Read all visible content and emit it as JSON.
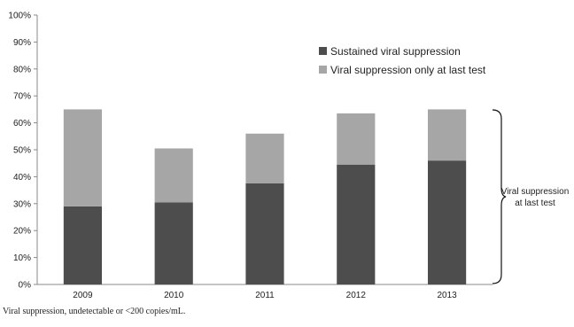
{
  "chart_data": {
    "type": "bar",
    "stacked": true,
    "categories": [
      "2009",
      "2010",
      "2011",
      "2012",
      "2013"
    ],
    "series": [
      {
        "name": "Sustained viral suppression",
        "values": [
          29,
          30.5,
          37.5,
          44.5,
          46
        ],
        "color": "#4d4d4d"
      },
      {
        "name": "Viral suppression only at last test",
        "values": [
          36,
          20,
          18.5,
          19,
          19
        ],
        "color": "#a6a6a6"
      }
    ],
    "ylim": [
      0,
      100
    ],
    "yticks": [
      "0%",
      "10%",
      "20%",
      "30%",
      "40%",
      "50%",
      "60%",
      "70%",
      "80%",
      "90%",
      "100%"
    ],
    "grid": false,
    "legend_position": "top-right",
    "annotation": {
      "lines": [
        "Viral suppression",
        "at last test"
      ]
    },
    "footnote": "Viral suppression, undetectable or <200 copies/mL."
  }
}
